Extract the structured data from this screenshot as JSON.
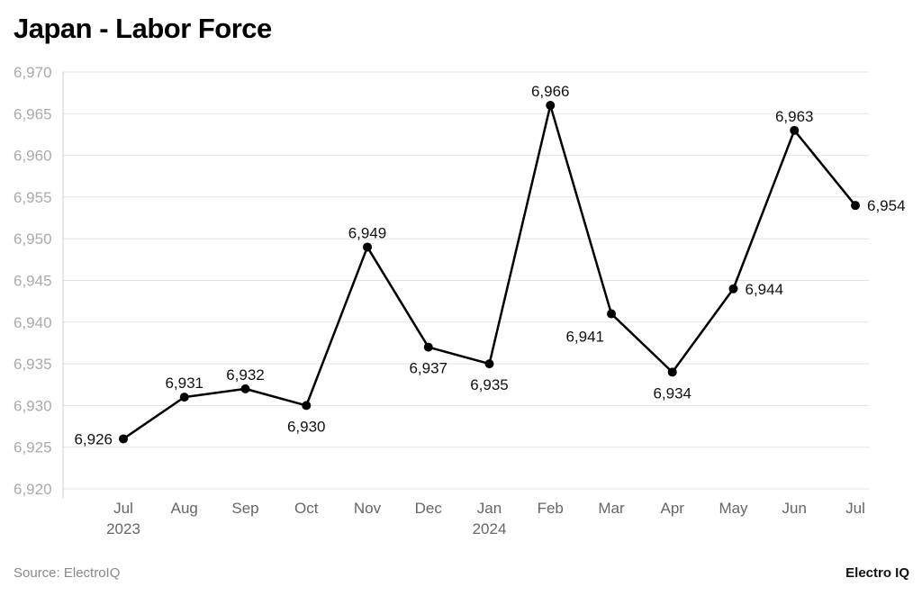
{
  "chart_data": {
    "type": "line",
    "title": "Japan - Labor Force",
    "categories": [
      "Jul\n2023",
      "Aug",
      "Sep",
      "Oct",
      "Nov",
      "Dec",
      "Jan\n2024",
      "Feb",
      "Mar",
      "Apr",
      "May",
      "Jun",
      "Jul"
    ],
    "values": [
      6926,
      6931,
      6932,
      6930,
      6949,
      6937,
      6935,
      6966,
      6941,
      6934,
      6944,
      6963,
      6954
    ],
    "data_labels": [
      "6,926",
      "6,931",
      "6,932",
      "6,930",
      "6,949",
      "6,937",
      "6,935",
      "6,966",
      "6,941",
      "6,934",
      "6,944",
      "6,963",
      "6,954"
    ],
    "ylim": [
      6920,
      6970
    ],
    "yticks": [
      6920,
      6925,
      6930,
      6935,
      6940,
      6945,
      6950,
      6955,
      6960,
      6965,
      6970
    ],
    "ytick_labels": [
      "6,920",
      "6,925",
      "6,930",
      "6,935",
      "6,940",
      "6,945",
      "6,950",
      "6,955",
      "6,960",
      "6,965",
      "6,970"
    ],
    "grid": true,
    "line_color": "#000000",
    "xlabel": "",
    "ylabel": ""
  },
  "source": "Source: ElectroIQ",
  "logo": "Electro IQ"
}
